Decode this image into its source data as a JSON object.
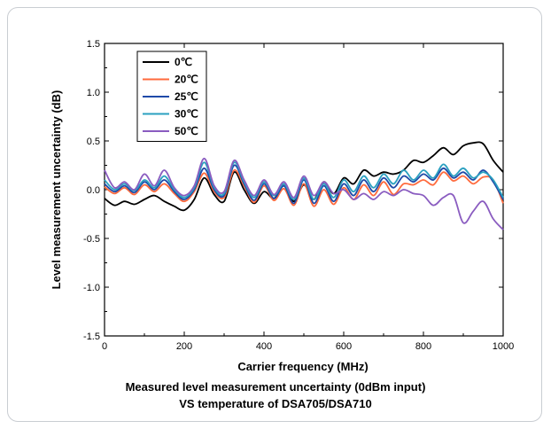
{
  "chart_data": {
    "type": "line",
    "xlabel": "Carrier frequency (MHz)",
    "ylabel": "Level measurement uncertainty (dB)",
    "xlim": [
      0,
      1000
    ],
    "ylim": [
      -1.5,
      1.5
    ],
    "xticks": [
      0,
      200,
      400,
      600,
      800,
      1000
    ],
    "yticks": [
      -1.5,
      -1.0,
      -0.5,
      0.0,
      0.5,
      1.0,
      1.5
    ],
    "ytick_labels": [
      "-1.5",
      "-1.0",
      "-0.5",
      "0.0",
      "0.5",
      "1.0",
      "1.5"
    ],
    "legend_position": "top-left",
    "grid": false,
    "x": [
      0,
      25,
      50,
      75,
      100,
      125,
      150,
      175,
      200,
      225,
      250,
      275,
      300,
      325,
      350,
      375,
      400,
      425,
      450,
      475,
      500,
      525,
      550,
      575,
      600,
      625,
      650,
      675,
      700,
      725,
      750,
      775,
      800,
      825,
      850,
      875,
      900,
      925,
      950,
      975,
      1000
    ],
    "series": [
      {
        "name": "0℃",
        "color": "#000000",
        "values": [
          -0.09,
          -0.16,
          -0.12,
          -0.15,
          -0.1,
          -0.06,
          -0.12,
          -0.17,
          -0.21,
          -0.1,
          0.12,
          -0.05,
          -0.12,
          0.18,
          0.0,
          -0.14,
          -0.02,
          -0.09,
          0.04,
          -0.12,
          0.05,
          -0.1,
          0.08,
          -0.04,
          0.12,
          0.06,
          0.2,
          0.14,
          0.18,
          0.16,
          0.2,
          0.3,
          0.28,
          0.35,
          0.43,
          0.36,
          0.45,
          0.48,
          0.47,
          0.3,
          0.18
        ]
      },
      {
        "name": "20℃",
        "color": "#ff6a3d",
        "values": [
          0.03,
          -0.04,
          0.02,
          -0.05,
          0.05,
          -0.02,
          0.06,
          -0.04,
          -0.12,
          -0.02,
          0.17,
          -0.02,
          -0.08,
          0.2,
          0.04,
          -0.13,
          0.04,
          -0.11,
          0.01,
          -0.16,
          0.06,
          -0.17,
          0.0,
          -0.15,
          0.02,
          -0.1,
          0.05,
          -0.06,
          0.08,
          -0.05,
          0.06,
          0.05,
          0.1,
          0.05,
          0.18,
          0.09,
          0.14,
          0.06,
          0.13,
          0.1,
          -0.14
        ]
      },
      {
        "name": "25℃",
        "color": "#1f4aa8",
        "values": [
          0.06,
          -0.02,
          0.04,
          -0.03,
          0.08,
          0.0,
          0.1,
          -0.02,
          -0.1,
          0.0,
          0.22,
          0.0,
          -0.06,
          0.25,
          0.06,
          -0.11,
          0.06,
          -0.09,
          0.04,
          -0.14,
          0.1,
          -0.14,
          0.04,
          -0.12,
          0.06,
          -0.06,
          0.1,
          -0.02,
          0.12,
          0.02,
          0.14,
          0.08,
          0.16,
          0.1,
          0.22,
          0.12,
          0.18,
          0.1,
          0.2,
          0.08,
          -0.1
        ]
      },
      {
        "name": "30℃",
        "color": "#2aa0c0",
        "values": [
          0.1,
          0.0,
          0.06,
          -0.01,
          0.1,
          0.02,
          0.14,
          0.0,
          -0.08,
          0.02,
          0.28,
          0.02,
          -0.04,
          0.28,
          0.08,
          -0.08,
          0.08,
          -0.06,
          0.06,
          -0.1,
          0.12,
          -0.1,
          0.06,
          -0.08,
          0.1,
          -0.02,
          0.14,
          0.02,
          0.16,
          0.06,
          0.2,
          0.1,
          0.2,
          0.12,
          0.26,
          0.14,
          0.22,
          0.12,
          0.18,
          0.1,
          -0.08
        ]
      },
      {
        "name": "50℃",
        "color": "#8a5cc0",
        "values": [
          0.2,
          0.02,
          0.08,
          0.0,
          0.16,
          0.04,
          0.2,
          0.02,
          -0.06,
          0.04,
          0.32,
          0.04,
          -0.02,
          0.3,
          0.1,
          -0.06,
          0.1,
          -0.05,
          0.08,
          -0.08,
          0.14,
          -0.06,
          0.08,
          -0.04,
          0.0,
          -0.1,
          -0.04,
          -0.1,
          -0.02,
          -0.06,
          0.0,
          -0.04,
          -0.06,
          -0.16,
          -0.08,
          -0.06,
          -0.34,
          -0.22,
          -0.12,
          -0.3,
          -0.41
        ]
      }
    ]
  },
  "caption": {
    "line1": "Measured level measurement uncertainty (0dBm input)",
    "line2": "VS temperature of DSA705/DSA710"
  }
}
